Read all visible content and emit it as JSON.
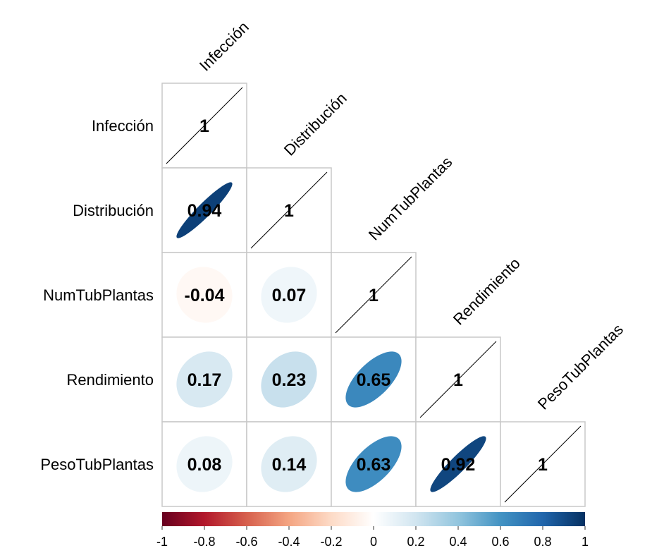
{
  "chart_data": {
    "type": "heatmap",
    "subtype": "correlation-matrix-lower-triangle-ellipse",
    "title": "",
    "variables": [
      "Infección",
      "Distribución",
      "NumTubPlantas",
      "Rendimiento",
      "PesoTubPlantas"
    ],
    "matrix": [
      [
        1,
        null,
        null,
        null,
        null
      ],
      [
        0.94,
        1,
        null,
        null,
        null
      ],
      [
        -0.04,
        0.07,
        1,
        null,
        null
      ],
      [
        0.17,
        0.23,
        0.65,
        1,
        null
      ],
      [
        0.08,
        0.14,
        0.63,
        0.92,
        1
      ]
    ],
    "labels": [
      [
        "1",
        "",
        "",
        "",
        ""
      ],
      [
        "0.94",
        "1",
        "",
        "",
        ""
      ],
      [
        "-0.04",
        "0.07",
        "1",
        "",
        ""
      ],
      [
        "0.17",
        "0.23",
        "0.65",
        "1",
        ""
      ],
      [
        "0.08",
        "0.14",
        "0.63",
        "0.92",
        "1"
      ]
    ],
    "color_scale": {
      "range": [
        -1,
        1
      ],
      "ticks": [
        "-1",
        "-0.8",
        "-0.6",
        "-0.4",
        "-0.2",
        "0",
        "0.2",
        "0.4",
        "0.6",
        "0.8",
        "1"
      ],
      "stops": [
        "#67001f",
        "#b2182b",
        "#d6604d",
        "#f4a582",
        "#fddbc7",
        "#ffffff",
        "#d1e5f0",
        "#92c5de",
        "#4393c3",
        "#2166ac",
        "#053061"
      ]
    },
    "legend_placement": "bottom",
    "grid": true
  }
}
